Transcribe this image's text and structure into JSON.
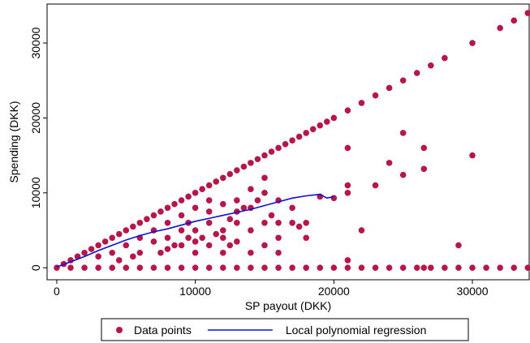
{
  "chart_data": {
    "type": "scatter",
    "x_label": "SP payout (DKK)",
    "y_label": "Spending (DKK)",
    "xlim": [
      -700,
      34100
    ],
    "ylim": [
      -1600,
      35200
    ],
    "xticks": [
      0,
      10000,
      20000,
      30000
    ],
    "yticks": [
      0,
      10000,
      20000,
      30000
    ],
    "grid": false,
    "legend": "bottom",
    "series": [
      {
        "name": "Data points",
        "type": "scatter",
        "color": "#b5174b",
        "x": [
          0,
          500,
          1000,
          1500,
          2000,
          2500,
          3000,
          3500,
          4000,
          4500,
          5000,
          5500,
          6000,
          6500,
          7000,
          7500,
          8000,
          8500,
          9000,
          9500,
          10000,
          10500,
          11000,
          11500,
          12000,
          12500,
          13000,
          13500,
          14000,
          14500,
          15000,
          15500,
          16000,
          16500,
          17000,
          17500,
          18000,
          18500,
          19000,
          19500,
          20000,
          21000,
          22000,
          23000,
          24000,
          25000,
          26000,
          27000,
          28000,
          30000,
          32000,
          33000,
          34000,
          1000,
          2000,
          3000,
          4000,
          5000,
          6000,
          7000,
          8000,
          9000,
          10000,
          11000,
          12000,
          13000,
          14000,
          15000,
          16000,
          17000,
          18000,
          19000,
          20000,
          21000,
          22000,
          23000,
          24000,
          25000,
          26000,
          26500,
          27000,
          28000,
          29000,
          30000,
          31000,
          32000,
          33000,
          34000,
          21000,
          25000,
          26500,
          30000,
          24000,
          26500,
          25000,
          21000,
          23000,
          21000,
          29000,
          21000,
          22000,
          18000,
          18000,
          17000,
          15000,
          15000,
          16000,
          14000,
          13000,
          12000,
          11000,
          10000,
          9000,
          8000,
          7000,
          6000,
          5000,
          4000,
          3000,
          12000,
          13000,
          14000,
          15000,
          16000,
          15000,
          13000,
          12000,
          11000,
          10000,
          9000,
          8000,
          9000,
          10000,
          11000,
          14000,
          16000,
          17000,
          19000,
          20000,
          14000,
          12000,
          10000,
          8000,
          7000,
          6000,
          13000,
          11000,
          9500,
          17500,
          15500,
          14500,
          13500,
          12500,
          12500,
          11500,
          10500,
          9500,
          8500,
          7500,
          5500,
          4500,
          16000
        ],
        "values": [
          0,
          500,
          1000,
          1500,
          2000,
          2500,
          3000,
          3500,
          4000,
          4500,
          5000,
          5500,
          6000,
          6500,
          7000,
          7500,
          8000,
          8500,
          9000,
          9500,
          10000,
          10500,
          11000,
          11500,
          12000,
          12500,
          13000,
          13500,
          14000,
          14500,
          15000,
          15500,
          16000,
          16500,
          17000,
          17500,
          18000,
          18500,
          19000,
          19500,
          20000,
          21000,
          22000,
          23000,
          24000,
          25000,
          26000,
          27000,
          28000,
          30000,
          32000,
          33000,
          34000,
          0,
          0,
          0,
          0,
          0,
          0,
          0,
          0,
          0,
          0,
          0,
          0,
          0,
          0,
          0,
          0,
          0,
          0,
          0,
          0,
          0,
          0,
          0,
          0,
          0,
          0,
          0,
          0,
          0,
          0,
          0,
          0,
          0,
          0,
          0,
          16000,
          18000,
          16000,
          15000,
          14000,
          13200,
          12400,
          11000,
          11000,
          10000,
          3000,
          1000,
          5000,
          4000,
          6000,
          8000,
          12000,
          10000,
          9000,
          10500,
          9000,
          8500,
          9000,
          8000,
          7000,
          6000,
          5000,
          4000,
          3000,
          2000,
          1500,
          5000,
          6000,
          5000,
          6000,
          4000,
          3000,
          3500,
          4000,
          3000,
          2000,
          3000,
          2500,
          5000,
          5000,
          6000,
          8000,
          6000,
          6000,
          9500,
          9300,
          2000,
          2000,
          3500,
          4000,
          3500,
          2000,
          7500,
          7500,
          6000,
          5500,
          7000,
          9000,
          8000,
          6500,
          3000,
          4500,
          4000,
          4000,
          3000,
          2000,
          1500,
          1000,
          2000
        ]
      },
      {
        "name": "Local polynomial regression",
        "type": "line",
        "color": "#1010d0",
        "x": [
          0,
          1000,
          2000,
          3000,
          4000,
          5000,
          6000,
          7000,
          8000,
          9000,
          10000,
          11000,
          12000,
          13000,
          14000,
          15000,
          16000,
          17000,
          18000,
          19000,
          19500,
          20000
        ],
        "values": [
          100,
          800,
          1500,
          2300,
          3000,
          3700,
          4300,
          4800,
          5200,
          5700,
          6200,
          6600,
          7000,
          7400,
          7800,
          8300,
          8800,
          9300,
          9600,
          9800,
          9300,
          9500
        ]
      }
    ]
  }
}
